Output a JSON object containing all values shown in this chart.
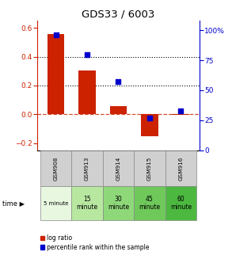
{
  "title": "GDS33 / 6003",
  "samples": [
    "GSM908",
    "GSM913",
    "GSM914",
    "GSM915",
    "GSM916"
  ],
  "log_ratios": [
    0.555,
    0.305,
    0.055,
    -0.155,
    -0.005
  ],
  "percentile_ranks": [
    96,
    80,
    57,
    27,
    33
  ],
  "time_labels_top": [
    "5",
    "15",
    "30",
    "45",
    "60"
  ],
  "time_labels_bot": [
    "minute",
    "minute",
    "minute",
    "minute",
    "minute"
  ],
  "time_label_single": [
    "5 minute",
    "15\nminute",
    "30\nminute",
    "45\nminute",
    "60\nminute"
  ],
  "time_bg_colors": [
    "#e8f8e0",
    "#b8e8a0",
    "#8ed87a",
    "#6ec85a",
    "#4cb840"
  ],
  "sample_bg_color": "#d0d0d0",
  "bar_color": "#cc2200",
  "scatter_color": "#0000cc",
  "left_ylim": [
    -0.25,
    0.65
  ],
  "right_ylim": [
    0,
    108
  ],
  "left_yticks": [
    -0.2,
    0.0,
    0.2,
    0.4,
    0.6
  ],
  "right_yticks": [
    0,
    25,
    50,
    75,
    100
  ],
  "right_yticklabels": [
    "0",
    "25",
    "50",
    "75",
    "100%"
  ]
}
